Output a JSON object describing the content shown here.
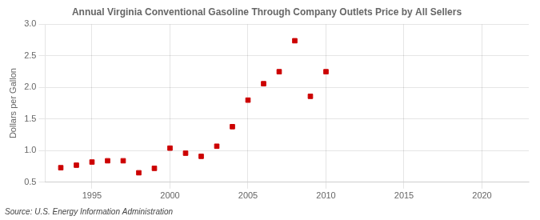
{
  "chart_data": {
    "type": "scatter",
    "title": "Annual Virginia Conventional Gasoline Through Company Outlets Price by All Sellers",
    "ylabel": "Dollars per Gallon",
    "annotation": "Source: U.S. Energy Information Administration",
    "x": [
      1993,
      1994,
      1995,
      1996,
      1997,
      1998,
      1999,
      2000,
      2001,
      2002,
      2003,
      2004,
      2005,
      2006,
      2007,
      2008,
      2009,
      2010
    ],
    "values": [
      0.73,
      0.77,
      0.82,
      0.84,
      0.84,
      0.65,
      0.72,
      1.04,
      0.96,
      0.91,
      1.07,
      1.38,
      1.8,
      2.06,
      2.25,
      2.74,
      1.86,
      2.25
    ],
    "color": "#cc0000",
    "marker": "square",
    "xlim": [
      1992,
      2023
    ],
    "ylim": [
      0.5,
      3.0
    ],
    "xticks": [
      1995,
      2000,
      2005,
      2010,
      2015,
      2020
    ],
    "yticks": [
      0.5,
      {
        "value": 1.0,
        "label": "1.0"
      },
      1.5,
      {
        "value": 2.0,
        "label": "2.0"
      },
      2.5,
      {
        "value": 3.0,
        "label": "3.0"
      }
    ],
    "grid": true
  }
}
